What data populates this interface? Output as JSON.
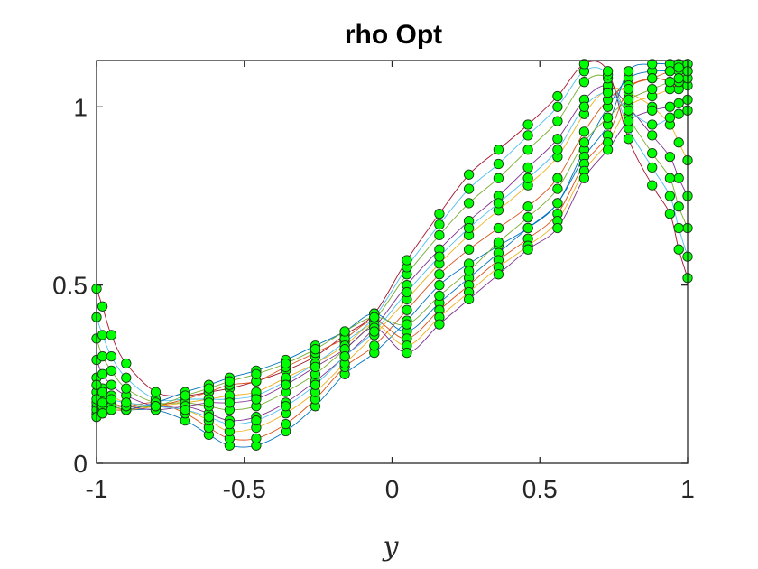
{
  "chart_data": {
    "type": "line",
    "title": "rho Opt",
    "xlabel": "y",
    "ylabel": "",
    "xlim": [
      -1,
      1
    ],
    "ylim": [
      0,
      1.13
    ],
    "xticks": [
      -1,
      -0.5,
      0,
      0.5,
      1
    ],
    "xtick_labels": [
      "-1",
      "-0.5",
      "0",
      "0.5",
      "1"
    ],
    "yticks": [
      0,
      0.5,
      1
    ],
    "ytick_labels": [
      "0",
      "0.5",
      "1"
    ],
    "grid": false,
    "box": true,
    "marker_color": "#00ff00",
    "marker_edge_color": "#1a3a1a",
    "line_colors": [
      "#0072bd",
      "#d95319",
      "#edb120",
      "#7e2f8e",
      "#77ac30",
      "#4dbeee",
      "#a2142f"
    ],
    "x": [
      -1,
      -0.98,
      -0.95,
      -0.9,
      -0.8,
      -0.7,
      -0.62,
      -0.55,
      -0.46,
      -0.36,
      -0.26,
      -0.16,
      -0.06,
      0.05,
      0.16,
      0.26,
      0.36,
      0.46,
      0.56,
      0.65,
      0.73,
      0.8,
      0.88,
      0.94,
      0.97,
      1
    ],
    "series": [
      {
        "values": [
          0.16,
          0.15,
          0.16,
          0.15,
          0.15,
          0.12,
          0.08,
          0.05,
          0.05,
          0.09,
          0.16,
          0.25,
          0.31,
          0.4,
          0.5,
          0.56,
          0.61,
          0.66,
          0.73,
          0.88,
          1.0,
          1.08,
          1.1,
          1.1,
          1.1,
          1.1
        ]
      },
      {
        "values": [
          0.2,
          0.18,
          0.17,
          0.16,
          0.17,
          0.14,
          0.1,
          0.07,
          0.07,
          0.11,
          0.18,
          0.27,
          0.33,
          0.43,
          0.53,
          0.6,
          0.66,
          0.72,
          0.8,
          0.93,
          1.02,
          1.06,
          1.08,
          1.07,
          1.05,
          1.06
        ]
      },
      {
        "values": [
          0.24,
          0.21,
          0.19,
          0.17,
          0.16,
          0.15,
          0.12,
          0.09,
          0.1,
          0.14,
          0.2,
          0.28,
          0.36,
          0.46,
          0.56,
          0.64,
          0.71,
          0.78,
          0.86,
          0.98,
          1.05,
          1.04,
          1.0,
          0.95,
          0.9,
          0.85
        ]
      },
      {
        "values": [
          0.29,
          0.25,
          0.22,
          0.19,
          0.16,
          0.16,
          0.14,
          0.12,
          0.13,
          0.17,
          0.23,
          0.3,
          0.38,
          0.5,
          0.6,
          0.68,
          0.75,
          0.83,
          0.91,
          1.02,
          1.06,
          1.0,
          0.92,
          0.86,
          0.8,
          0.75
        ]
      },
      {
        "values": [
          0.35,
          0.3,
          0.26,
          0.21,
          0.17,
          0.17,
          0.16,
          0.15,
          0.16,
          0.2,
          0.25,
          0.32,
          0.4,
          0.53,
          0.64,
          0.73,
          0.8,
          0.88,
          0.96,
          1.07,
          1.08,
          0.97,
          0.87,
          0.8,
          0.72,
          0.66
        ]
      },
      {
        "values": [
          0.41,
          0.36,
          0.3,
          0.24,
          0.18,
          0.18,
          0.18,
          0.18,
          0.19,
          0.23,
          0.28,
          0.34,
          0.41,
          0.55,
          0.67,
          0.77,
          0.84,
          0.92,
          1.0,
          1.1,
          1.09,
          0.94,
          0.83,
          0.75,
          0.66,
          0.58
        ]
      },
      {
        "values": [
          0.49,
          0.44,
          0.36,
          0.28,
          0.2,
          0.19,
          0.2,
          0.21,
          0.23,
          0.26,
          0.3,
          0.36,
          0.42,
          0.57,
          0.7,
          0.81,
          0.88,
          0.95,
          1.03,
          1.12,
          1.1,
          0.91,
          0.78,
          0.7,
          0.6,
          0.52
        ]
      },
      {
        "values": [
          0.14,
          0.14,
          0.15,
          0.15,
          0.17,
          0.2,
          0.22,
          0.24,
          0.26,
          0.29,
          0.33,
          0.37,
          0.42,
          0.37,
          0.45,
          0.52,
          0.59,
          0.66,
          0.73,
          0.86,
          0.95,
          1.1,
          1.12,
          1.12,
          1.12,
          1.12
        ]
      },
      {
        "values": [
          0.15,
          0.15,
          0.15,
          0.15,
          0.16,
          0.18,
          0.2,
          0.22,
          0.23,
          0.27,
          0.31,
          0.35,
          0.4,
          0.35,
          0.43,
          0.5,
          0.57,
          0.63,
          0.7,
          0.84,
          0.92,
          1.05,
          1.08,
          1.1,
          1.11,
          1.12
        ]
      },
      {
        "values": [
          0.17,
          0.16,
          0.16,
          0.15,
          0.16,
          0.17,
          0.18,
          0.19,
          0.2,
          0.24,
          0.28,
          0.33,
          0.39,
          0.33,
          0.41,
          0.48,
          0.55,
          0.61,
          0.68,
          0.82,
          0.9,
          1.0,
          1.03,
          1.05,
          1.07,
          1.08
        ]
      },
      {
        "values": [
          0.18,
          0.17,
          0.16,
          0.16,
          0.15,
          0.16,
          0.17,
          0.17,
          0.18,
          0.22,
          0.27,
          0.32,
          0.38,
          0.31,
          0.39,
          0.46,
          0.53,
          0.6,
          0.66,
          0.8,
          0.88,
          0.96,
          0.99,
          1.0,
          1.01,
          1.02
        ]
      },
      {
        "values": [
          0.13,
          0.14,
          0.15,
          0.16,
          0.16,
          0.19,
          0.21,
          0.23,
          0.25,
          0.28,
          0.32,
          0.37,
          0.41,
          0.39,
          0.47,
          0.54,
          0.62,
          0.69,
          0.77,
          0.9,
          0.97,
          1.02,
          1.05,
          1.07,
          1.08,
          1.1
        ]
      },
      {
        "values": [
          0.22,
          0.2,
          0.18,
          0.17,
          0.16,
          0.15,
          0.13,
          0.11,
          0.12,
          0.16,
          0.22,
          0.3,
          0.37,
          0.48,
          0.58,
          0.66,
          0.73,
          0.8,
          0.88,
          1.0,
          1.04,
          0.99,
          0.95,
          0.97,
          0.98,
          0.99
        ]
      }
    ]
  }
}
